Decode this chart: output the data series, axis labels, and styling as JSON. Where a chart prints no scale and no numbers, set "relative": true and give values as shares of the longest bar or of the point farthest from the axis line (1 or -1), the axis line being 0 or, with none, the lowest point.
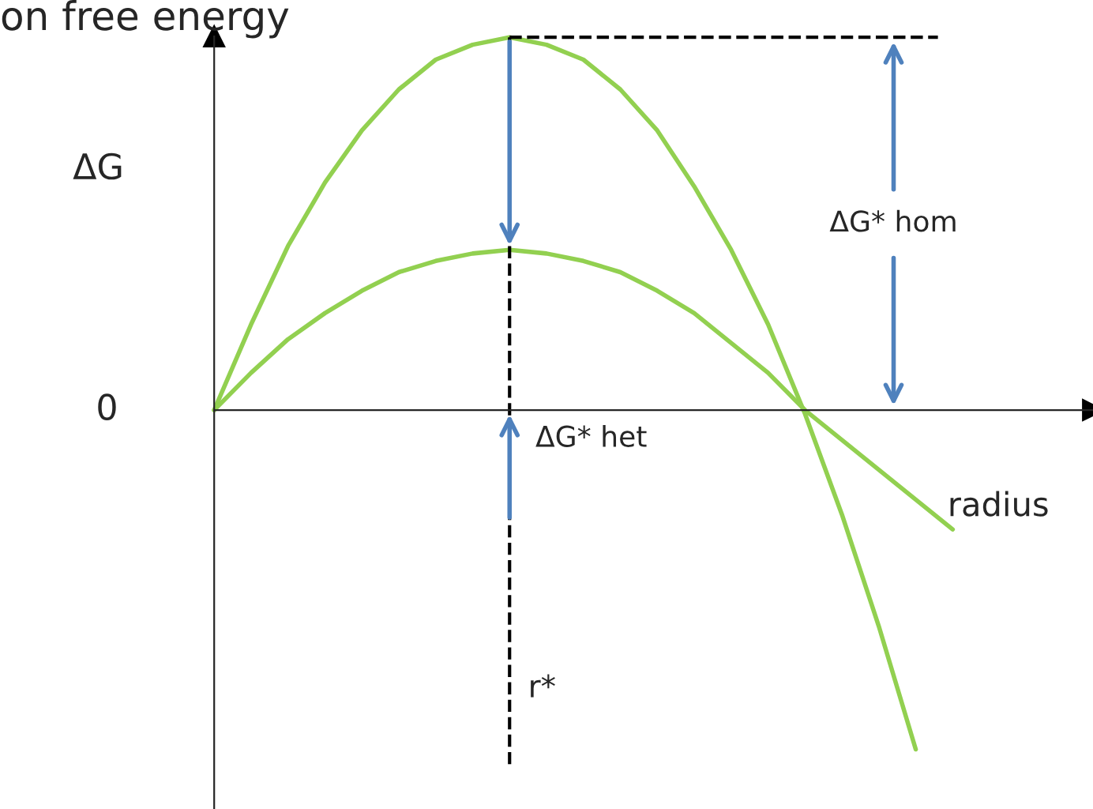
{
  "chart_data": {
    "type": "line",
    "relative": true,
    "title": "on free energy",
    "xlabel": "radius",
    "ylabel": "ΔG",
    "categories": [
      null,
      null,
      null,
      null,
      null,
      null,
      null,
      null,
      null,
      null,
      null,
      null,
      null,
      null,
      null,
      null,
      null,
      null,
      null,
      null,
      null
    ],
    "series": [
      {
        "color": "#92d050",
        "values": [
          0,
          0.23,
          0.44,
          0.61,
          0.75,
          0.86,
          0.94,
          0.98,
          1.0,
          0.98,
          0.94,
          0.86,
          0.75,
          0.6,
          0.43,
          0.23,
          -0.01,
          -0.28,
          -0.58,
          -0.91,
          null
        ]
      },
      {
        "color": "#92d050",
        "values": [
          0,
          0.1,
          0.19,
          0.26,
          0.32,
          0.37,
          0.4,
          0.42,
          0.43,
          0.42,
          0.4,
          0.37,
          0.32,
          0.26,
          0.18,
          0.1,
          0,
          -0.08,
          -0.16,
          -0.24,
          -0.32
        ]
      }
    ],
    "annotations": [
      "0",
      "ΔG* hom",
      "ΔG* het"
    ],
    "ref_lines": [
      {
        "axis": "x",
        "label": "r*",
        "line_style": "dashed",
        "color": "#000000"
      },
      {
        "axis": "y",
        "value": 1,
        "line_style": "dashed",
        "color": "#000000"
      }
    ]
  }
}
